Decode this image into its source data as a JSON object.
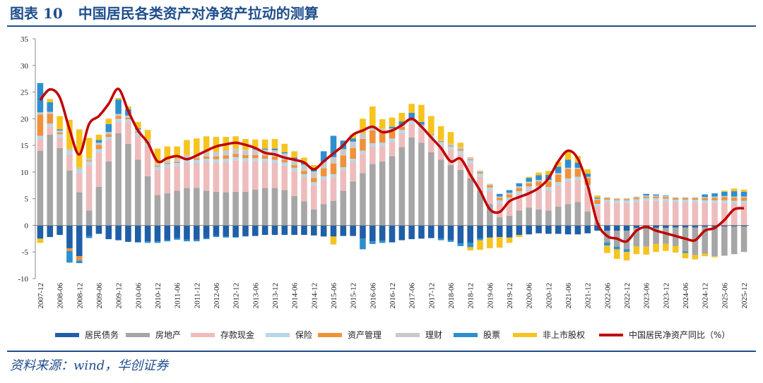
{
  "figure": {
    "number": "图表 10",
    "title": "中国居民各类资产对净资产拉动的测算",
    "source": "资料来源：wind，华创证券"
  },
  "colors": {
    "title": "#1f4e8c",
    "居民债务": "#1f5fa8",
    "房地产": "#a6a6a6",
    "存款现金": "#eebcbc",
    "保险": "#b8d8ea",
    "资产管理": "#f0913a",
    "理财": "#c9c9c9",
    "股票": "#2e8fcf",
    "非上市股权": "#f7c31f",
    "中国居民净资产同比": "#c00000"
  },
  "chart_data": {
    "type": "bar",
    "stacked": true,
    "ylim": [
      -10,
      35
    ],
    "yticks": [
      -10,
      -5,
      0,
      5,
      10,
      15,
      20,
      25,
      30,
      35
    ],
    "xlabel": "",
    "ylabel": "",
    "grid": false,
    "legend_position": "bottom",
    "categories": [
      "2007-12",
      "2008-03",
      "2008-06",
      "2008-09",
      "2008-12",
      "2009-03",
      "2009-06",
      "2009-09",
      "2009-12",
      "2010-03",
      "2010-06",
      "2010-09",
      "2010-12",
      "2011-03",
      "2011-06",
      "2011-09",
      "2011-12",
      "2012-03",
      "2012-06",
      "2012-09",
      "2012-12",
      "2013-03",
      "2013-06",
      "2013-09",
      "2013-12",
      "2014-03",
      "2014-06",
      "2014-09",
      "2014-12",
      "2015-03",
      "2015-06",
      "2015-09",
      "2015-12",
      "2016-03",
      "2016-06",
      "2016-09",
      "2016-12",
      "2017-03",
      "2017-06",
      "2017-09",
      "2017-12",
      "2018-03",
      "2018-06",
      "2018-09",
      "2018-12",
      "2019-03",
      "2019-06",
      "2019-09",
      "2019-12",
      "2020-03",
      "2020-06",
      "2020-09",
      "2020-12",
      "2021-03",
      "2021-06",
      "2021-09",
      "2021-12",
      "2022-03",
      "2022-06",
      "2022-09",
      "2022-12",
      "2023-03",
      "2023-06",
      "2023-09",
      "2023-12",
      "2024-03",
      "2024-06",
      "2024-09",
      "2024-12",
      "2025-03",
      "2025-06",
      "2025-09",
      "2025-12"
    ],
    "xtick_labels": [
      "2007-12",
      "2008-06",
      "2008-12",
      "2009-06",
      "2009-12",
      "2010-06",
      "2010-12",
      "2011-06",
      "2011-12",
      "2012-06",
      "2012-12",
      "2013-06",
      "2013-12",
      "2014-06",
      "2014-12",
      "2015-06",
      "2015-12",
      "2016-06",
      "2016-12",
      "2017-06",
      "2017-12",
      "2018-06",
      "2018-12",
      "2019-06",
      "2019-12",
      "2020-06",
      "2020-12",
      "2021-06",
      "2021-12",
      "2022-06",
      "2022-12",
      "2023-06",
      "2023-12",
      "2024-06",
      "2024-12",
      "2025-06",
      "2025-12"
    ],
    "series": [
      {
        "name": "居民债务",
        "kind": "bar",
        "values": [
          -2.5,
          -2.2,
          -1.8,
          -4.3,
          -5.8,
          -2.0,
          -1.6,
          -2.6,
          -2.8,
          -3.1,
          -3.2,
          -3.0,
          -3.0,
          -2.8,
          -2.4,
          -2.7,
          -2.7,
          -2.4,
          -2.0,
          -2.1,
          -2.2,
          -2.0,
          -2.0,
          -1.8,
          -1.8,
          -1.8,
          -1.8,
          -1.8,
          -1.9,
          -2.1,
          -2.1,
          -2.0,
          -2.0,
          -2.5,
          -3.0,
          -2.9,
          -3.2,
          -2.8,
          -2.6,
          -2.5,
          -2.4,
          -2.5,
          -2.8,
          -3.4,
          -3.3,
          -2.5,
          -2.3,
          -2.2,
          -2.3,
          -1.8,
          -1.7,
          -1.5,
          -1.6,
          -1.6,
          -1.7,
          -1.7,
          -1.5,
          -1.0,
          -1.0,
          -1.0,
          -1.0,
          -0.5,
          -0.5,
          -0.5,
          -0.5,
          -0.4,
          -0.4,
          -0.4,
          -0.3,
          -0.3,
          -0.2,
          -0.2,
          -0.2
        ]
      },
      {
        "name": "房地产",
        "kind": "bar",
        "values": [
          14.0,
          17.0,
          14.5,
          10.3,
          6.2,
          2.8,
          7.2,
          12.0,
          17.3,
          15.3,
          12.3,
          9.2,
          5.7,
          6.0,
          6.5,
          7.0,
          7.0,
          6.5,
          6.3,
          6.2,
          6.3,
          6.3,
          6.7,
          7.0,
          7.0,
          6.6,
          5.5,
          4.5,
          3.0,
          4.0,
          4.6,
          6.5,
          8.2,
          9.8,
          11.5,
          12.0,
          13.0,
          14.7,
          16.5,
          15.5,
          13.7,
          12.3,
          11.3,
          10.4,
          8.8,
          6.5,
          4.0,
          1.5,
          1.8,
          2.8,
          3.3,
          3.0,
          2.8,
          3.5,
          4.0,
          4.4,
          2.6,
          0.5,
          -2.2,
          -3.0,
          -3.5,
          -3.5,
          -3.5,
          -3.0,
          -3.0,
          -3.5,
          -4.5,
          -5.2,
          -5.0,
          -5.5,
          -5.5,
          -5.2,
          -4.8
        ]
      },
      {
        "name": "存款现金",
        "kind": "bar",
        "values": [
          2.2,
          1.5,
          2.0,
          3.0,
          3.6,
          8.6,
          6.5,
          4.0,
          2.1,
          4.0,
          4.5,
          5.7,
          4.7,
          4.9,
          4.6,
          4.8,
          4.7,
          5.4,
          5.5,
          5.7,
          5.9,
          5.7,
          5.3,
          4.9,
          4.7,
          4.6,
          4.7,
          4.5,
          4.5,
          4.6,
          4.4,
          3.8,
          3.7,
          3.6,
          3.3,
          2.9,
          2.7,
          2.6,
          2.5,
          2.5,
          2.6,
          2.7,
          2.9,
          3.0,
          2.8,
          2.6,
          2.5,
          2.6,
          2.8,
          3.0,
          3.4,
          3.8,
          3.8,
          4.0,
          4.2,
          4.1,
          4.4,
          3.0,
          4.3,
          4.2,
          4.2,
          4.4,
          4.6,
          4.6,
          4.5,
          4.3,
          4.3,
          4.3,
          4.2,
          4.2,
          4.2,
          4.1,
          4.1
        ]
      },
      {
        "name": "保险",
        "kind": "bar",
        "values": [
          0.6,
          0.6,
          0.6,
          0.6,
          0.6,
          0.6,
          0.6,
          0.6,
          0.6,
          0.6,
          0.6,
          0.6,
          0.6,
          0.6,
          0.6,
          0.6,
          0.6,
          0.6,
          0.6,
          0.6,
          0.6,
          0.6,
          0.6,
          0.6,
          0.6,
          0.6,
          0.6,
          0.6,
          0.6,
          0.6,
          0.6,
          0.6,
          0.6,
          0.6,
          0.6,
          0.6,
          0.6,
          0.6,
          0.6,
          0.6,
          0.6,
          0.6,
          0.6,
          0.6,
          0.6,
          0.6,
          0.6,
          0.6,
          0.6,
          0.6,
          0.6,
          0.6,
          0.6,
          0.6,
          0.6,
          0.6,
          0.6,
          0.5,
          0.5,
          0.5,
          0.5,
          0.5,
          0.5,
          0.5,
          0.5,
          0.5,
          0.5,
          0.5,
          0.5,
          0.5,
          0.5,
          0.5,
          0.5
        ]
      },
      {
        "name": "资产管理",
        "kind": "bar",
        "values": [
          4.0,
          1.8,
          0.3,
          -0.5,
          -0.8,
          0.2,
          0.8,
          0.5,
          0.5,
          0.3,
          0.2,
          0.2,
          0.2,
          0.2,
          0.2,
          0.2,
          0.3,
          0.4,
          0.5,
          0.6,
          0.6,
          0.6,
          0.6,
          0.6,
          0.6,
          0.5,
          0.5,
          0.6,
          0.8,
          1.5,
          2.0,
          2.2,
          2.0,
          2.2,
          2.4,
          2.0,
          1.5,
          0.6,
          0.3,
          0.2,
          0.2,
          0.2,
          0.2,
          0.3,
          0.2,
          0.3,
          0.4,
          0.5,
          0.6,
          0.6,
          0.6,
          0.8,
          1.0,
          1.4,
          1.8,
          1.5,
          1.3,
          0.8,
          0.3,
          0.2,
          0.2,
          0.3,
          0.3,
          0.3,
          0.3,
          0.3,
          0.3,
          0.3,
          0.4,
          0.5,
          0.6,
          0.6,
          0.6
        ]
      },
      {
        "name": "理财",
        "kind": "bar",
        "values": [
          0.4,
          0.4,
          0.4,
          0.4,
          0.4,
          0.4,
          0.4,
          0.4,
          0.4,
          0.4,
          0.4,
          0.4,
          0.4,
          0.5,
          0.6,
          0.6,
          0.7,
          0.8,
          0.9,
          1.0,
          1.0,
          1.0,
          1.0,
          1.1,
          1.2,
          1.2,
          1.2,
          1.2,
          1.2,
          1.2,
          1.2,
          1.2,
          1.2,
          1.0,
          0.8,
          0.6,
          0.4,
          0.3,
          0.2,
          0.1,
          0.1,
          0.2,
          0.3,
          0.4,
          0.4,
          0.3,
          0.3,
          0.2,
          0.3,
          0.3,
          0.3,
          0.3,
          0.3,
          0.3,
          0.2,
          0.2,
          0.2,
          0.2,
          0.2,
          0.2,
          0.2,
          0.2,
          0.2,
          0.2,
          0.2,
          0.2,
          0.2,
          0.2,
          0.2,
          0.2,
          0.2,
          0.2,
          0.2
        ]
      },
      {
        "name": "股票",
        "kind": "bar",
        "values": [
          5.5,
          1.8,
          0.2,
          -2.2,
          -0.5,
          -0.4,
          0.5,
          1.5,
          2.7,
          1.2,
          0.2,
          -0.3,
          -0.3,
          -0.2,
          -0.3,
          -0.3,
          -0.3,
          -0.2,
          -0.2,
          -0.2,
          -0.1,
          -0.1,
          0.1,
          0.2,
          0.3,
          0.2,
          0.2,
          0.3,
          0.6,
          2.0,
          4.0,
          1.6,
          0.6,
          -2.0,
          -0.5,
          -0.4,
          0.3,
          0.7,
          1.0,
          0.5,
          0.0,
          -0.3,
          -0.3,
          -0.5,
          -0.8,
          -0.3,
          0.0,
          0.5,
          0.5,
          0.6,
          0.7,
          0.9,
          1.0,
          1.2,
          1.5,
          1.0,
          0.6,
          0.2,
          -0.6,
          -0.5,
          -0.5,
          0.0,
          0.3,
          0.2,
          0.1,
          0.0,
          -0.3,
          0.0,
          0.5,
          0.6,
          0.8,
          1.0,
          0.9
        ]
      },
      {
        "name": "非上市股权",
        "kind": "bar",
        "values": [
          -0.8,
          0.6,
          2.5,
          5.5,
          7.2,
          3.8,
          1.0,
          1.0,
          0.3,
          0.5,
          1.2,
          1.8,
          2.8,
          2.6,
          2.3,
          2.8,
          3.0,
          3.0,
          2.8,
          2.5,
          2.3,
          2.0,
          1.8,
          1.7,
          1.8,
          1.6,
          1.2,
          1.0,
          0.6,
          0.0,
          -1.5,
          0.0,
          0.7,
          2.8,
          3.7,
          1.8,
          1.7,
          1.6,
          1.7,
          3.2,
          3.3,
          2.6,
          2.2,
          0.8,
          -0.6,
          -1.8,
          -2.0,
          -2.0,
          -1.0,
          -0.4,
          0.2,
          0.5,
          0.7,
          0.9,
          1.5,
          1.2,
          0.8,
          0.4,
          -1.4,
          -1.8,
          -1.6,
          -1.4,
          -1.5,
          -1.5,
          -1.3,
          -1.2,
          -1.0,
          -0.8,
          -0.5,
          -0.2,
          0.2,
          0.5,
          0.4
        ]
      },
      {
        "name": "中国居民净资产同比",
        "kind": "line",
        "unit": "%",
        "values": [
          23.5,
          25.5,
          24.0,
          18.0,
          13.3,
          19.0,
          20.5,
          22.8,
          25.6,
          21.5,
          17.8,
          15.5,
          12.0,
          12.6,
          13.0,
          12.4,
          13.1,
          14.0,
          14.8,
          15.2,
          15.5,
          15.1,
          14.5,
          13.6,
          13.3,
          12.7,
          12.3,
          11.8,
          10.5,
          12.0,
          13.5,
          15.0,
          17.0,
          17.8,
          18.5,
          17.5,
          17.8,
          18.8,
          20.0,
          18.5,
          16.5,
          14.5,
          12.0,
          12.5,
          9.5,
          6.5,
          3.0,
          2.5,
          4.5,
          5.3,
          6.0,
          7.0,
          8.8,
          12.0,
          14.0,
          12.5,
          7.5,
          0.5,
          -2.0,
          -2.5,
          -3.0,
          -1.0,
          -0.3,
          -1.0,
          -1.5,
          -2.0,
          -2.5,
          -2.8,
          -1.0,
          -0.5,
          1.0,
          3.0,
          3.2
        ]
      }
    ],
    "legend": [
      "居民债务",
      "房地产",
      "存款现金",
      "保险",
      "资产管理",
      "理财",
      "股票",
      "非上市股权",
      "中国居民净资产同比（%）"
    ]
  }
}
